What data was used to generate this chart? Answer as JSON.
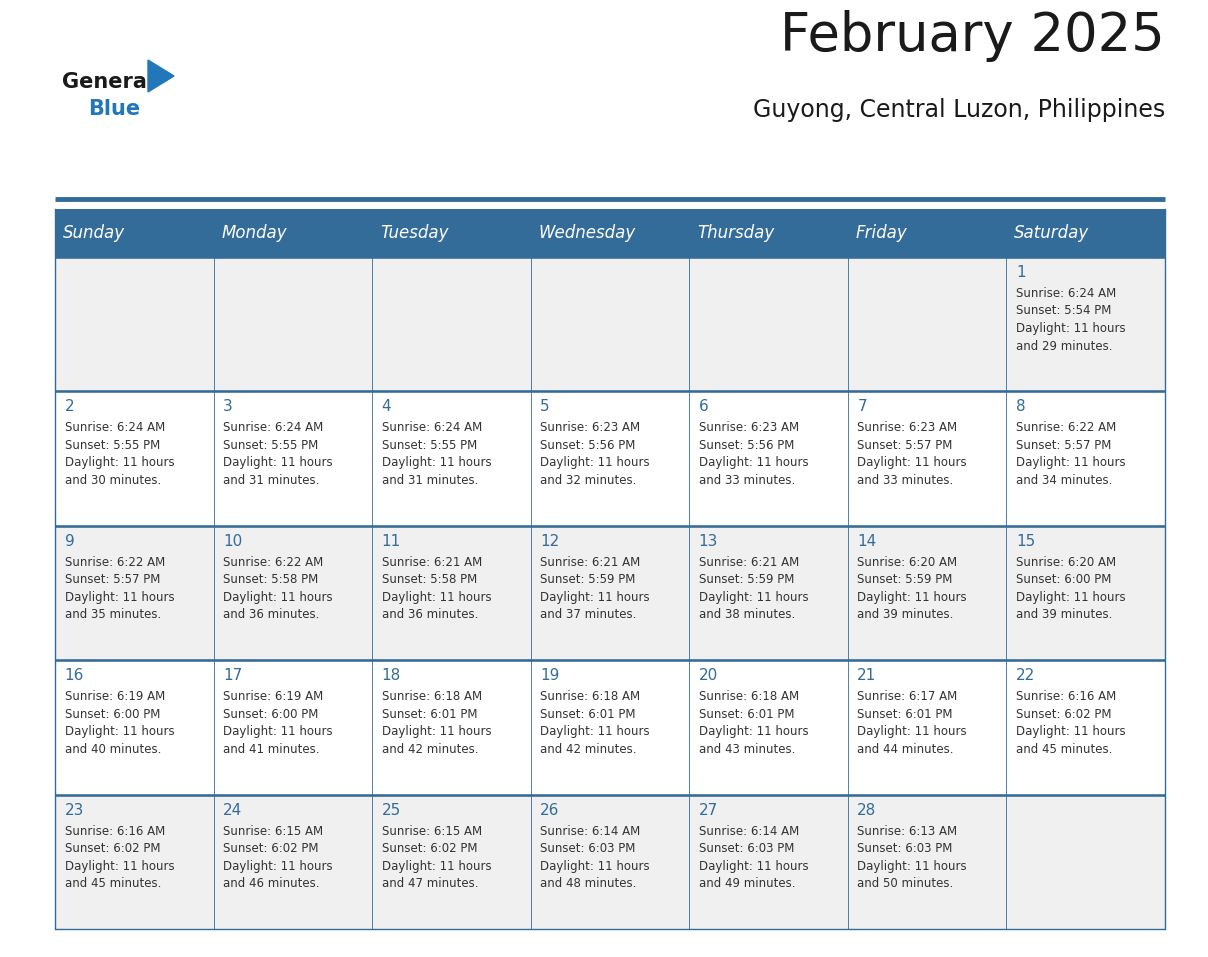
{
  "title": "February 2025",
  "subtitle": "Guyong, Central Luzon, Philippines",
  "days_of_week": [
    "Sunday",
    "Monday",
    "Tuesday",
    "Wednesday",
    "Thursday",
    "Friday",
    "Saturday"
  ],
  "header_bg": "#336b99",
  "header_text": "#ffffff",
  "odd_row_bg": "#f0f0f0",
  "even_row_bg": "#ffffff",
  "line_color": "#336b99",
  "cell_data": [
    [
      "",
      "",
      "",
      "",
      "",
      "",
      "1\nSunrise: 6:24 AM\nSunset: 5:54 PM\nDaylight: 11 hours\nand 29 minutes."
    ],
    [
      "2\nSunrise: 6:24 AM\nSunset: 5:55 PM\nDaylight: 11 hours\nand 30 minutes.",
      "3\nSunrise: 6:24 AM\nSunset: 5:55 PM\nDaylight: 11 hours\nand 31 minutes.",
      "4\nSunrise: 6:24 AM\nSunset: 5:55 PM\nDaylight: 11 hours\nand 31 minutes.",
      "5\nSunrise: 6:23 AM\nSunset: 5:56 PM\nDaylight: 11 hours\nand 32 minutes.",
      "6\nSunrise: 6:23 AM\nSunset: 5:56 PM\nDaylight: 11 hours\nand 33 minutes.",
      "7\nSunrise: 6:23 AM\nSunset: 5:57 PM\nDaylight: 11 hours\nand 33 minutes.",
      "8\nSunrise: 6:22 AM\nSunset: 5:57 PM\nDaylight: 11 hours\nand 34 minutes."
    ],
    [
      "9\nSunrise: 6:22 AM\nSunset: 5:57 PM\nDaylight: 11 hours\nand 35 minutes.",
      "10\nSunrise: 6:22 AM\nSunset: 5:58 PM\nDaylight: 11 hours\nand 36 minutes.",
      "11\nSunrise: 6:21 AM\nSunset: 5:58 PM\nDaylight: 11 hours\nand 36 minutes.",
      "12\nSunrise: 6:21 AM\nSunset: 5:59 PM\nDaylight: 11 hours\nand 37 minutes.",
      "13\nSunrise: 6:21 AM\nSunset: 5:59 PM\nDaylight: 11 hours\nand 38 minutes.",
      "14\nSunrise: 6:20 AM\nSunset: 5:59 PM\nDaylight: 11 hours\nand 39 minutes.",
      "15\nSunrise: 6:20 AM\nSunset: 6:00 PM\nDaylight: 11 hours\nand 39 minutes."
    ],
    [
      "16\nSunrise: 6:19 AM\nSunset: 6:00 PM\nDaylight: 11 hours\nand 40 minutes.",
      "17\nSunrise: 6:19 AM\nSunset: 6:00 PM\nDaylight: 11 hours\nand 41 minutes.",
      "18\nSunrise: 6:18 AM\nSunset: 6:01 PM\nDaylight: 11 hours\nand 42 minutes.",
      "19\nSunrise: 6:18 AM\nSunset: 6:01 PM\nDaylight: 11 hours\nand 42 minutes.",
      "20\nSunrise: 6:18 AM\nSunset: 6:01 PM\nDaylight: 11 hours\nand 43 minutes.",
      "21\nSunrise: 6:17 AM\nSunset: 6:01 PM\nDaylight: 11 hours\nand 44 minutes.",
      "22\nSunrise: 6:16 AM\nSunset: 6:02 PM\nDaylight: 11 hours\nand 45 minutes."
    ],
    [
      "23\nSunrise: 6:16 AM\nSunset: 6:02 PM\nDaylight: 11 hours\nand 45 minutes.",
      "24\nSunrise: 6:15 AM\nSunset: 6:02 PM\nDaylight: 11 hours\nand 46 minutes.",
      "25\nSunrise: 6:15 AM\nSunset: 6:02 PM\nDaylight: 11 hours\nand 47 minutes.",
      "26\nSunrise: 6:14 AM\nSunset: 6:03 PM\nDaylight: 11 hours\nand 48 minutes.",
      "27\nSunrise: 6:14 AM\nSunset: 6:03 PM\nDaylight: 11 hours\nand 49 minutes.",
      "28\nSunrise: 6:13 AM\nSunset: 6:03 PM\nDaylight: 11 hours\nand 50 minutes.",
      ""
    ]
  ],
  "logo_triangle_color": "#2277bb",
  "title_fontsize": 38,
  "subtitle_fontsize": 17,
  "header_fontsize": 12,
  "cell_day_fontsize": 11,
  "cell_info_fontsize": 8.5
}
